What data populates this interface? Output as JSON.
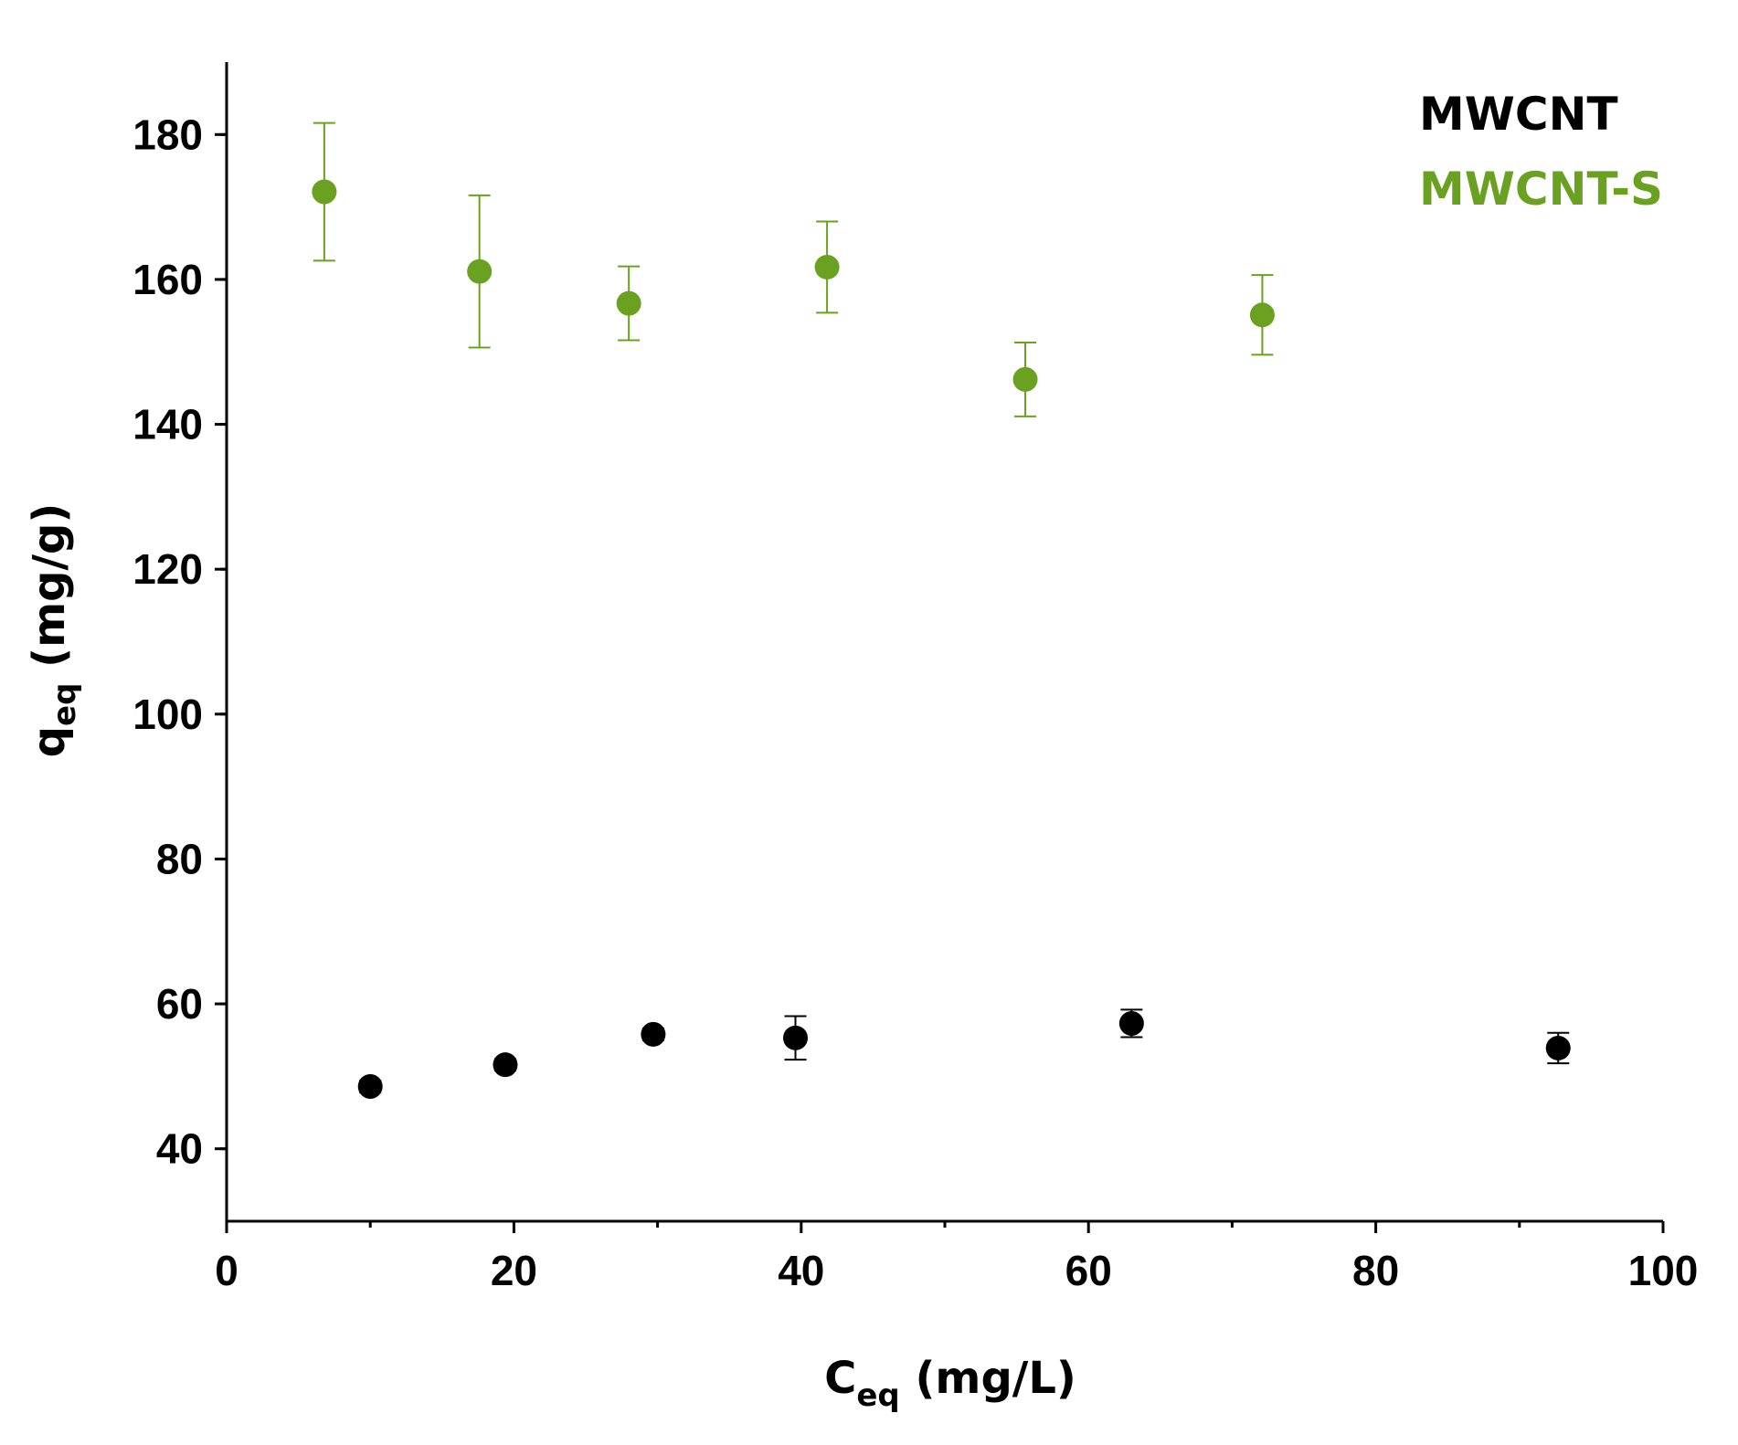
{
  "chart_data": {
    "type": "scatter",
    "title": "",
    "xlabel": {
      "main": "C",
      "sub": "eq",
      "unit": " (mg/L)"
    },
    "ylabel": {
      "main": "q",
      "sub": "eq",
      "unit": " (mg/g)"
    },
    "xlim": [
      0,
      100
    ],
    "ylim": [
      30,
      190
    ],
    "xticks": [
      0,
      20,
      40,
      60,
      80,
      100
    ],
    "yticks": [
      40,
      60,
      80,
      100,
      120,
      140,
      160,
      180
    ],
    "grid": false,
    "legend_position": "top-right",
    "series": [
      {
        "name": "MWCNT",
        "color": "#000000",
        "marker": "circle",
        "points": [
          {
            "x": 10.0,
            "y": 48.6,
            "err": 0.8
          },
          {
            "x": 19.4,
            "y": 51.6,
            "err": 0.8
          },
          {
            "x": 29.7,
            "y": 55.8,
            "err": 0.8
          },
          {
            "x": 39.6,
            "y": 55.3,
            "err": 3.0
          },
          {
            "x": 63.0,
            "y": 57.3,
            "err": 1.9
          },
          {
            "x": 92.7,
            "y": 53.9,
            "err": 2.1
          }
        ]
      },
      {
        "name": "MWCNT-S",
        "color": "#6aa121",
        "marker": "circle",
        "points": [
          {
            "x": 6.8,
            "y": 172.1,
            "err": 9.5
          },
          {
            "x": 17.6,
            "y": 161.1,
            "err": 10.5
          },
          {
            "x": 28.0,
            "y": 156.7,
            "err": 5.1
          },
          {
            "x": 41.8,
            "y": 161.7,
            "err": 6.3
          },
          {
            "x": 55.6,
            "y": 146.2,
            "err": 5.1
          },
          {
            "x": 72.1,
            "y": 155.1,
            "err": 5.5
          }
        ]
      }
    ]
  }
}
